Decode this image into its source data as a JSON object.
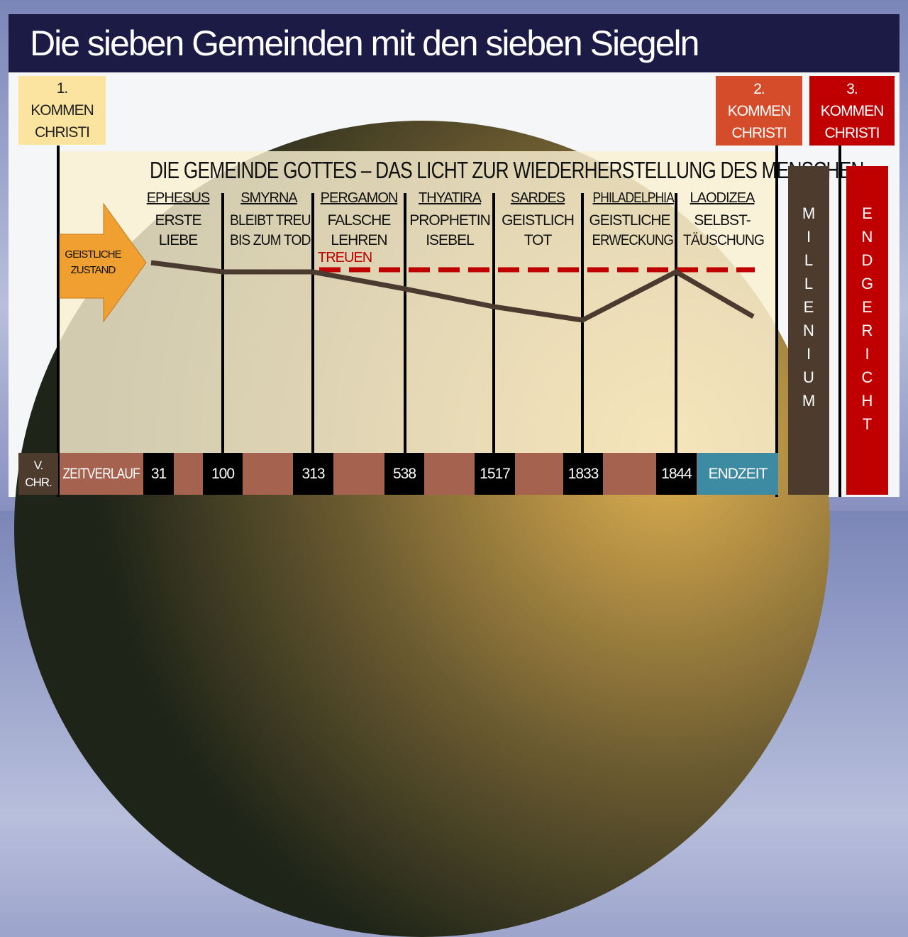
{
  "title": "Die sieben Gemeinden mit den sieben Siegeln",
  "comings": [
    {
      "num": "1.",
      "l1": "KOMMEN",
      "l2": "CHRISTI"
    },
    {
      "num": "2.",
      "l1": "KOMMEN",
      "l2": "CHRISTI"
    },
    {
      "num": "3.",
      "l1": "KOMMEN",
      "l2": "CHRISTI"
    }
  ],
  "heading": "DIE GEMEINDE GOTTES – DAS LICHT ZUR WIEDERHERSTELLUNG DES MENSCHEN",
  "arrow_label": {
    "l1": "GEISTLICHE",
    "l2": "ZUSTAND"
  },
  "churches": [
    {
      "name": "EPHESUS",
      "l1": "ERSTE",
      "l2": "LIEBE"
    },
    {
      "name": "SMYRNA",
      "l1": "BLEIBT TREU",
      "l2": "BIS ZUM TOD"
    },
    {
      "name": "PERGAMON",
      "l1": "FALSCHE",
      "l2": "LEHREN"
    },
    {
      "name": "THYATIRA",
      "l1": "PROPHETIN",
      "l2": "ISEBEL"
    },
    {
      "name": "SARDES",
      "l1": "GEISTLICH",
      "l2": "TOT"
    },
    {
      "name": "PHILADELPHIA",
      "l1": "GEISTLICHE",
      "l2": "ERWECKUNG"
    },
    {
      "name": "LAODIZEA",
      "l1": "SELBST-",
      "l2": "TÄUSCHUNG"
    }
  ],
  "faithful_label": "TREUEN",
  "timeline": {
    "bc": {
      "l1": "V.",
      "l2": "CHR."
    },
    "label": "ZEITVERLAUF",
    "years": [
      "31",
      "100",
      "313",
      "538",
      "1517",
      "1833",
      "1844"
    ],
    "end": "ENDZEIT"
  },
  "millennium": "MILLENIUM",
  "judgment": "ENDGERICHT",
  "colors": {
    "title_bg": "#1c1b45",
    "coming1": "#fbe3a0",
    "coming2": "#d44c2a",
    "coming3": "#c00000",
    "arrow": "#f0a030",
    "timeline": "#a5634f",
    "endzeit": "#3d8aa3",
    "millennium": "#4d3b2e",
    "line": "#4a3a30",
    "dash": "#c00000"
  }
}
